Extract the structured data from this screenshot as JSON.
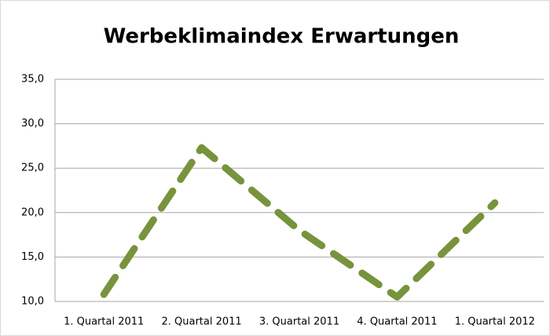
{
  "chart_data": {
    "type": "line",
    "title": "Werbeklimaindex Erwartungen",
    "categories": [
      "1. Quartal 2011",
      "2. Quartal 2011",
      "3. Quartal 2011",
      "4. Quartal 2011",
      "1. Quartal 2012"
    ],
    "series": [
      {
        "name": "Erwartungen",
        "color": "#77933c",
        "values": [
          10.8,
          27.3,
          18.0,
          10.5,
          21.1
        ]
      }
    ],
    "ylim": [
      10,
      35
    ],
    "yticks": [
      {
        "value": 10,
        "label": "10,0"
      },
      {
        "value": 15,
        "label": "15,0"
      },
      {
        "value": 20,
        "label": "20,0"
      },
      {
        "value": 25,
        "label": "25,0"
      },
      {
        "value": 30,
        "label": "30,0"
      },
      {
        "value": 35,
        "label": "35,0"
      }
    ],
    "grid": true
  }
}
